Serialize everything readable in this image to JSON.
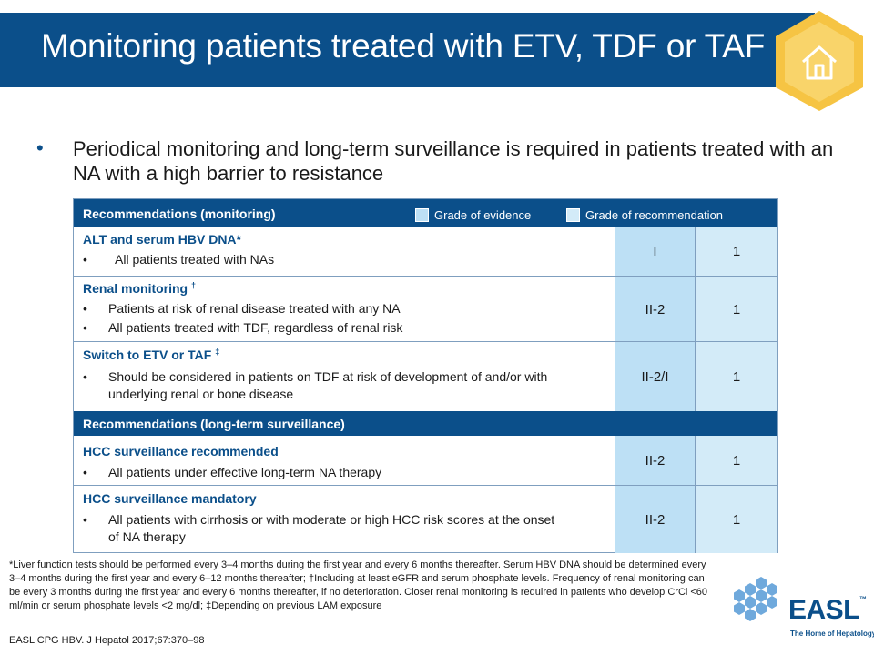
{
  "slide": {
    "title": "Monitoring patients treated with ETV, TDF or TAF",
    "bullet": "Periodical monitoring and long-term surveillance is required in patients treated with an NA with a high barrier to resistance",
    "bullet_marker": "•"
  },
  "table": {
    "header_monitoring": "Recommendations (monitoring)",
    "legend_evidence": "Grade of evidence",
    "legend_recommendation": "Grade of recommendation",
    "header_surveillance": "Recommendations (long-term surveillance)",
    "rows": [
      {
        "title": "ALT and serum HBV DNA*",
        "sup": "",
        "items": [
          "All patients treated with NAs"
        ],
        "grade": "I",
        "rec": "1"
      },
      {
        "title": "Renal monitoring",
        "sup": "†",
        "items": [
          "Patients at risk of renal disease treated with any NA",
          "All patients treated with TDF, regardless of renal risk"
        ],
        "grade": "II-2",
        "rec": "1"
      },
      {
        "title": "Switch to ETV or TAF",
        "sup": "‡",
        "items": [
          "Should be considered in patients on TDF at risk of development of and/or with underlying renal or bone disease"
        ],
        "grade": "II-2/I",
        "rec": "1"
      },
      {
        "title": "HCC surveillance recommended",
        "sup": "",
        "items": [
          "All patients under effective long-term NA therapy"
        ],
        "grade": "II-2",
        "rec": "1"
      },
      {
        "title": "HCC surveillance mandatory",
        "sup": "",
        "items": [
          "All patients with cirrhosis or with moderate or high HCC risk scores at the onset of NA therapy"
        ],
        "grade": "II-2",
        "rec": "1"
      }
    ]
  },
  "footnote": "*Liver function tests should be performed every 3–4 months during the first year and every 6 months thereafter. Serum HBV DNA should be determined every 3–4 months during the first year and every 6–12 months thereafter; †Including at least eGFR and serum phosphate levels. Frequency of renal monitoring can be every 3 months during the first year and every 6 months thereafter, if no deterioration. Closer renal monitoring is required in patients who develop CrCl <60 ml/min or serum phosphate levels <2 mg/dl; ‡Depending on previous LAM exposure",
  "citation": "EASL CPG HBV. J Hepatol 2017;67:370–98",
  "logo": {
    "word": "EASL",
    "tm": "™",
    "tagline": "The Home of Hepatology"
  },
  "icons": {
    "home": "home-icon",
    "logo_mark": "easl-hexagons-icon"
  },
  "colors": {
    "primary": "#0b4f8a",
    "hex_accent": "#f6c443",
    "grade_cell": "#bde0f5",
    "rec_cell": "#d3ebf8"
  }
}
